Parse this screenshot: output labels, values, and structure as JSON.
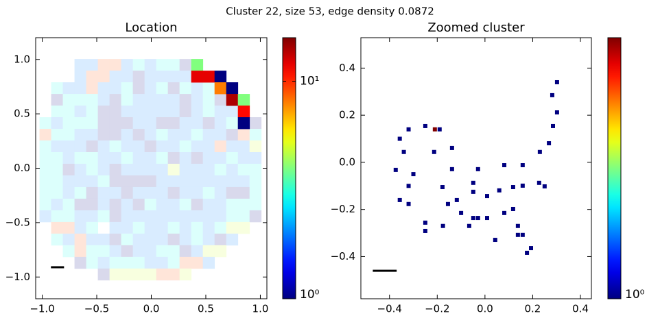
{
  "title": "Cluster 22, size 53, edge density 0.0872",
  "chart_data": [
    {
      "type": "heatmap",
      "title": "Location",
      "colormap": "jet",
      "color_scale": "log",
      "clim": [
        1,
        15.85
      ],
      "background_alpha": 0.15,
      "xlim": [
        -1.06,
        1.06
      ],
      "ylim": [
        -1.2,
        1.2
      ],
      "xticks": [
        {
          "value": -1,
          "label": "−1.0"
        },
        {
          "value": -0.5,
          "label": "−0.5"
        },
        {
          "value": 0,
          "label": "0.0"
        },
        0.5,
        {
          "value": 1,
          "label": "1.0"
        }
      ],
      "yticks": [
        {
          "value": -1,
          "label": "−1.0"
        },
        {
          "value": -0.5,
          "label": "−0.5"
        },
        {
          "value": 0,
          "label": "0.0"
        },
        0.5,
        {
          "value": 1,
          "label": "1.0"
        }
      ],
      "colorbar_ticks": [
        {
          "value": 1,
          "label": "10⁰"
        },
        {
          "value": 10,
          "label": "10¹"
        }
      ],
      "xbins": [
        -1.025,
        -0.918,
        -0.811,
        -0.704,
        -0.597,
        -0.49,
        -0.383,
        -0.276,
        -0.169,
        -0.062,
        0.045,
        0.152,
        0.259,
        0.366,
        0.473,
        0.58,
        0.687,
        0.794,
        0.901,
        1.008
      ],
      "ybins": [
        1.004,
        0.897,
        0.79,
        0.683,
        0.576,
        0.469,
        0.362,
        0.255,
        0.148,
        0.041,
        -0.066,
        -0.173,
        -0.28,
        -0.387,
        -0.494,
        -0.601,
        -0.708,
        -0.815,
        -0.922,
        -1.029
      ],
      "background_values": [
        [
          null,
          null,
          null,
          2,
          2,
          9,
          9,
          2,
          3,
          2,
          3,
          3,
          1,
          2,
          null,
          null,
          null,
          null,
          null
        ],
        [
          null,
          null,
          null,
          2,
          9,
          9,
          2,
          2,
          1,
          2,
          2,
          2,
          2,
          3,
          3,
          null,
          null,
          null,
          null
        ],
        [
          null,
          3,
          2,
          2,
          9,
          2,
          2,
          3,
          1,
          2,
          3,
          1,
          3,
          2,
          3,
          2,
          null,
          null,
          null
        ],
        [
          null,
          1,
          3,
          3,
          3,
          2,
          1,
          3,
          2,
          2,
          2,
          2,
          1,
          2,
          3,
          1,
          2,
          null,
          null
        ],
        [
          null,
          3,
          3,
          2,
          3,
          1,
          1,
          2,
          2,
          2,
          2,
          2,
          1,
          2,
          3,
          2,
          2,
          3,
          null
        ],
        [
          3,
          2,
          3,
          3,
          3,
          1,
          1,
          1,
          2,
          2,
          1,
          1,
          2,
          2,
          1,
          2,
          3,
          1,
          1
        ],
        [
          9,
          3,
          3,
          2,
          2,
          1,
          1,
          2,
          1,
          2,
          3,
          2,
          2,
          3,
          2,
          2,
          1,
          9,
          3
        ],
        [
          3,
          2,
          2,
          2,
          1,
          2,
          3,
          2,
          2,
          1,
          2,
          2,
          3,
          2,
          2,
          9,
          2,
          2,
          5
        ],
        [
          3,
          3,
          2,
          3,
          3,
          2,
          2,
          3,
          2,
          2,
          3,
          1,
          2,
          1,
          2,
          2,
          3,
          2,
          2
        ],
        [
          3,
          3,
          1,
          2,
          3,
          2,
          1,
          2,
          2,
          2,
          2,
          5,
          2,
          2,
          2,
          3,
          2,
          3,
          3
        ],
        [
          3,
          3,
          2,
          2,
          2,
          3,
          1,
          1,
          1,
          1,
          2,
          2,
          2,
          2,
          2,
          2,
          2,
          2,
          3
        ],
        [
          3,
          3,
          2,
          3,
          1,
          2,
          2,
          1,
          2,
          2,
          2,
          1,
          2,
          2,
          3,
          2,
          1,
          1,
          3
        ],
        [
          3,
          2,
          3,
          1,
          1,
          2,
          1,
          2,
          1,
          3,
          2,
          2,
          3,
          1,
          2,
          2,
          3,
          3,
          3
        ],
        [
          2,
          3,
          3,
          2,
          2,
          3,
          1,
          2,
          2,
          2,
          2,
          2,
          2,
          2,
          2,
          2,
          3,
          3,
          1
        ],
        [
          null,
          9,
          9,
          2,
          3,
          null,
          2,
          2,
          3,
          2,
          2,
          3,
          2,
          3,
          2,
          3,
          5,
          5,
          null
        ],
        [
          null,
          3,
          2,
          9,
          2,
          2,
          1,
          3,
          2,
          2,
          2,
          1,
          2,
          3,
          2,
          1,
          2,
          null,
          null
        ],
        [
          null,
          null,
          3,
          9,
          3,
          3,
          2,
          1,
          2,
          2,
          3,
          3,
          1,
          2,
          5,
          5,
          null,
          null,
          null
        ],
        [
          null,
          null,
          null,
          1,
          3,
          2,
          3,
          3,
          3,
          2,
          2,
          3,
          9,
          9,
          2,
          null,
          null,
          null,
          null
        ],
        [
          null,
          null,
          null,
          null,
          null,
          1,
          5,
          5,
          5,
          5,
          9,
          9,
          5,
          null,
          null,
          null,
          null,
          null,
          null
        ]
      ],
      "values": [
        [
          null,
          null,
          null,
          null,
          null,
          null,
          null,
          null,
          null,
          null,
          null,
          null,
          null,
          4,
          null,
          null,
          null,
          null,
          null
        ],
        [
          null,
          null,
          null,
          null,
          null,
          null,
          null,
          null,
          null,
          null,
          null,
          null,
          null,
          12,
          12,
          1,
          null,
          null,
          null
        ],
        [
          null,
          null,
          null,
          null,
          null,
          null,
          null,
          null,
          null,
          null,
          null,
          null,
          null,
          null,
          null,
          8,
          1,
          null,
          null
        ],
        [
          null,
          null,
          null,
          null,
          null,
          null,
          null,
          null,
          null,
          null,
          null,
          null,
          null,
          null,
          null,
          null,
          14,
          4,
          null
        ],
        [
          null,
          null,
          null,
          null,
          null,
          null,
          null,
          null,
          null,
          null,
          null,
          null,
          null,
          null,
          null,
          null,
          null,
          11,
          null
        ],
        [
          null,
          null,
          null,
          null,
          null,
          null,
          null,
          null,
          null,
          null,
          null,
          null,
          null,
          null,
          null,
          null,
          null,
          1,
          null
        ],
        [
          null,
          null,
          null,
          null,
          null,
          null,
          null,
          null,
          null,
          null,
          null,
          null,
          null,
          null,
          null,
          null,
          null,
          null,
          null
        ],
        [
          null,
          null,
          null,
          null,
          null,
          null,
          null,
          null,
          null,
          null,
          null,
          null,
          null,
          null,
          null,
          null,
          null,
          null,
          null
        ],
        [
          null,
          null,
          null,
          null,
          null,
          null,
          null,
          null,
          null,
          null,
          null,
          null,
          null,
          null,
          null,
          null,
          null,
          null,
          null
        ],
        [
          null,
          null,
          null,
          null,
          null,
          null,
          null,
          null,
          null,
          null,
          null,
          null,
          null,
          null,
          null,
          null,
          null,
          null,
          null
        ],
        [
          null,
          null,
          null,
          null,
          null,
          null,
          null,
          null,
          null,
          null,
          null,
          null,
          null,
          null,
          null,
          null,
          null,
          null,
          null
        ],
        [
          null,
          null,
          null,
          null,
          null,
          null,
          null,
          null,
          null,
          null,
          null,
          null,
          null,
          null,
          null,
          null,
          null,
          null,
          null
        ],
        [
          null,
          null,
          null,
          null,
          null,
          null,
          null,
          null,
          null,
          null,
          null,
          null,
          null,
          null,
          null,
          null,
          null,
          null,
          null
        ],
        [
          null,
          null,
          null,
          null,
          null,
          null,
          null,
          null,
          null,
          null,
          null,
          null,
          null,
          null,
          null,
          null,
          null,
          null,
          null
        ],
        [
          null,
          null,
          null,
          null,
          null,
          null,
          null,
          null,
          null,
          null,
          null,
          null,
          null,
          null,
          null,
          null,
          null,
          null,
          null
        ],
        [
          null,
          null,
          null,
          null,
          null,
          null,
          null,
          null,
          null,
          null,
          null,
          null,
          null,
          null,
          null,
          null,
          null,
          null,
          null
        ],
        [
          null,
          null,
          null,
          null,
          null,
          null,
          null,
          null,
          null,
          null,
          null,
          null,
          null,
          null,
          null,
          null,
          null,
          null,
          null
        ],
        [
          null,
          null,
          null,
          null,
          null,
          null,
          null,
          null,
          null,
          null,
          null,
          null,
          null,
          null,
          null,
          null,
          null,
          null,
          null
        ],
        [
          null,
          null,
          null,
          null,
          null,
          null,
          null,
          null,
          null,
          null,
          null,
          null,
          null,
          null,
          null,
          null,
          null,
          null,
          null
        ]
      ],
      "scale_bar": {
        "x": [
          -0.92,
          -0.8
        ],
        "y": -0.91
      }
    },
    {
      "type": "scatter",
      "title": "Zoomed cluster",
      "colormap": "jet",
      "color_scale": "log",
      "clim": [
        1,
        2
      ],
      "xlim": [
        -0.52,
        0.446
      ],
      "ylim": [
        -0.579,
        0.529
      ],
      "xticks": [
        {
          "value": -0.4,
          "label": "−0.4"
        },
        {
          "value": -0.2,
          "label": "−0.2"
        },
        {
          "value": 0,
          "label": "0.0"
        },
        0.2,
        0.4
      ],
      "yticks": [
        {
          "value": -0.4,
          "label": "−0.4"
        },
        {
          "value": -0.2,
          "label": "−0.2"
        },
        {
          "value": 0,
          "label": "0.0"
        },
        0.2,
        0.4
      ],
      "colorbar_ticks": [
        {
          "value": 1,
          "label": "10⁰"
        }
      ],
      "x": [
        -0.32,
        -0.357,
        -0.34,
        -0.3,
        -0.374,
        -0.32,
        -0.32,
        -0.357,
        -0.25,
        -0.25,
        -0.25,
        -0.21,
        -0.19,
        -0.213,
        -0.138,
        -0.138,
        -0.178,
        -0.155,
        -0.118,
        -0.1,
        -0.176,
        -0.066,
        -0.049,
        -0.049,
        -0.029,
        -0.049,
        -0.029,
        0.009,
        0.009,
        0.043,
        0.081,
        0.158,
        0.06,
        0.118,
        0.158,
        0.081,
        0.118,
        0.138,
        0.138,
        0.158,
        0.193,
        0.176,
        0.302,
        0.302,
        0.282,
        0.285,
        0.268,
        0.23,
        0.227,
        0.25
      ],
      "y": [
        0.14,
        0.1,
        0.044,
        -0.05,
        -0.032,
        -0.1,
        -0.177,
        -0.16,
        -0.256,
        -0.291,
        0.154,
        0.14,
        0.14,
        0.044,
        0.061,
        -0.029,
        -0.105,
        -0.177,
        -0.16,
        -0.215,
        -0.27,
        -0.27,
        -0.087,
        -0.125,
        -0.029,
        -0.236,
        -0.236,
        -0.143,
        -0.236,
        -0.329,
        -0.012,
        -0.012,
        -0.119,
        -0.105,
        -0.099,
        -0.215,
        -0.198,
        -0.27,
        -0.308,
        -0.308,
        -0.364,
        -0.384,
        0.34,
        0.212,
        0.285,
        0.154,
        0.081,
        0.044,
        -0.087,
        -0.102
      ],
      "values": [
        1,
        1,
        1,
        1,
        1,
        1,
        1,
        1,
        1,
        1,
        1,
        2,
        1,
        1,
        1,
        1,
        1,
        1,
        1,
        1,
        1,
        1,
        1,
        1,
        1,
        1,
        1,
        1,
        1,
        1,
        1,
        1,
        1,
        1,
        1,
        1,
        1,
        1,
        1,
        1,
        1,
        1,
        1,
        1,
        1,
        1,
        1,
        1,
        1,
        1
      ],
      "scale_bar": {
        "x": [
          -0.47,
          -0.37
        ],
        "y": -0.46
      }
    }
  ]
}
